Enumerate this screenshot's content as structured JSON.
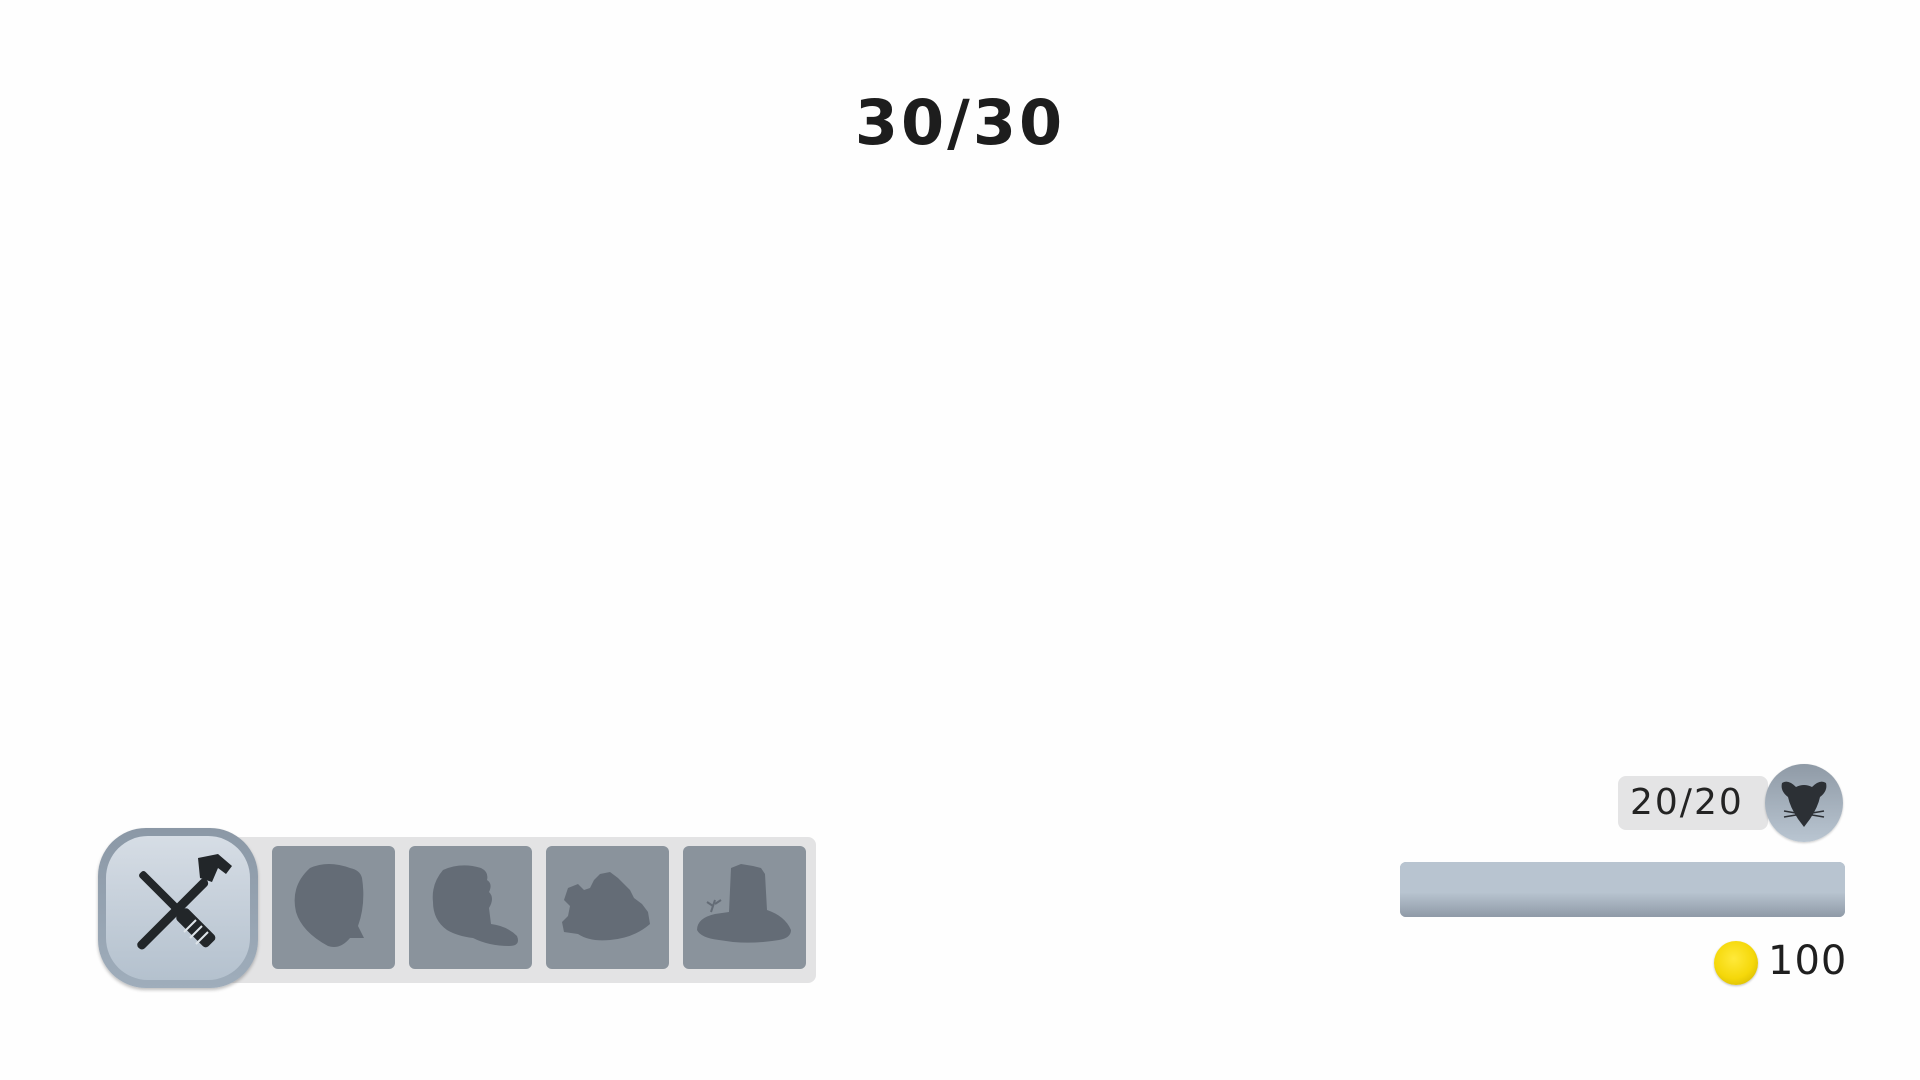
{
  "wave": {
    "label": "30/30"
  },
  "build_menu": {
    "tools_icon": "hammer-screwdriver-icon",
    "slots": [
      {
        "icon": "bush-silhouette-icon"
      },
      {
        "icon": "tree-stump-silhouette-icon"
      },
      {
        "icon": "shrub-cluster-silhouette-icon"
      },
      {
        "icon": "pillar-mound-silhouette-icon"
      }
    ]
  },
  "rats": {
    "label": "20/20",
    "icon": "rat-head-icon"
  },
  "progress": {
    "fraction": 1.0
  },
  "coins": {
    "icon": "coin-icon",
    "amount": "100"
  },
  "colors": {
    "slot_fill": "#8a939c",
    "silhouette": "#646c76",
    "coin": "#f5d80a",
    "text": "#1d1d1d"
  }
}
